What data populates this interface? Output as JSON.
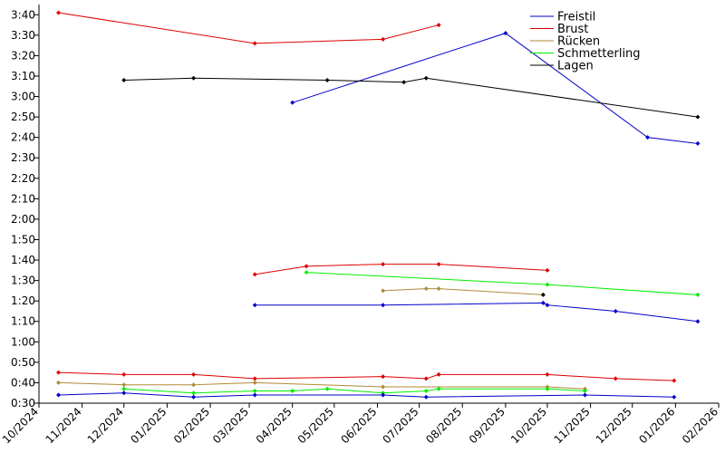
{
  "chart_data": {
    "type": "line",
    "title": "",
    "xlabel": "",
    "ylabel": "",
    "xlim": [
      "2024-10-01",
      "2026-02-01"
    ],
    "ylim": [
      "0:30",
      "3:45"
    ],
    "x_ticks": [
      "10/2024",
      "11/2024",
      "12/2024",
      "01/2025",
      "02/2025",
      "03/2025",
      "04/2025",
      "05/2025",
      "06/2025",
      "07/2025",
      "08/2025",
      "09/2025",
      "10/2025",
      "11/2025",
      "12/2025",
      "01/2026",
      "02/2026"
    ],
    "y_ticks": [
      "0:30",
      "0:40",
      "0:50",
      "1:00",
      "1:10",
      "1:20",
      "1:30",
      "1:40",
      "1:50",
      "2:00",
      "2:10",
      "2:20",
      "2:30",
      "2:40",
      "2:50",
      "3:00",
      "3:10",
      "3:20",
      "3:30",
      "3:40"
    ],
    "grid": false,
    "legend_position": "top-right",
    "colors": {
      "Freistil": "#0000cc",
      "Brust": "#dd0000",
      "Rücken": "#b08a3a",
      "Schmetterling": "#00ee00",
      "Lagen": "#000000"
    },
    "legend": [
      "Freistil",
      "Brust",
      "Rücken",
      "Schmetterling",
      "Lagen"
    ],
    "series": [
      {
        "name": "Freistil",
        "points": [
          [
            "2025-04-01",
            "2:57"
          ],
          [
            "2025-09-01",
            "3:31"
          ],
          [
            "2025-12-12",
            "2:40"
          ],
          [
            "2026-01-17",
            "2:37"
          ]
        ]
      },
      {
        "name": "Brust",
        "points": [
          [
            "2024-10-15",
            "3:41"
          ],
          [
            "2025-03-05",
            "3:26"
          ],
          [
            "2025-06-05",
            "3:28"
          ],
          [
            "2025-07-15",
            "3:35"
          ]
        ]
      },
      {
        "name": "Lagen",
        "points": [
          [
            "2024-12-01",
            "3:08"
          ],
          [
            "2025-01-20",
            "3:09"
          ],
          [
            "2025-04-26",
            "3:08"
          ],
          [
            "2025-06-20",
            "3:07"
          ],
          [
            "2025-07-06",
            "3:09"
          ],
          [
            "2026-01-17",
            "2:50"
          ]
        ]
      },
      {
        "name": "Brust",
        "points": [
          [
            "2025-03-05",
            "1:33"
          ],
          [
            "2025-04-11",
            "1:37"
          ],
          [
            "2025-06-05",
            "1:38"
          ],
          [
            "2025-07-15",
            "1:38"
          ],
          [
            "2025-10-01",
            "1:35"
          ]
        ]
      },
      {
        "name": "Schmetterling",
        "points": [
          [
            "2025-04-11",
            "1:34"
          ],
          [
            "2025-10-01",
            "1:28"
          ],
          [
            "2026-01-17",
            "1:23"
          ]
        ]
      },
      {
        "name": "Rücken",
        "points": [
          [
            "2025-06-05",
            "1:25"
          ],
          [
            "2025-07-06",
            "1:26"
          ],
          [
            "2025-07-15",
            "1:26"
          ],
          [
            "2025-09-28",
            "1:23"
          ]
        ]
      },
      {
        "name": "Lagen",
        "points": [
          [
            "2025-09-28",
            "1:23"
          ]
        ]
      },
      {
        "name": "Freistil",
        "points": [
          [
            "2025-03-05",
            "1:18"
          ],
          [
            "2025-06-05",
            "1:18"
          ],
          [
            "2025-09-28",
            "1:19"
          ],
          [
            "2025-10-01",
            "1:18"
          ],
          [
            "2025-11-19",
            "1:15"
          ],
          [
            "2026-01-17",
            "1:10"
          ]
        ]
      },
      {
        "name": "Brust",
        "points": [
          [
            "2024-10-15",
            "0:45"
          ],
          [
            "2024-12-01",
            "0:44"
          ],
          [
            "2025-01-20",
            "0:44"
          ],
          [
            "2025-03-05",
            "0:42"
          ],
          [
            "2025-06-05",
            "0:43"
          ],
          [
            "2025-07-06",
            "0:42"
          ],
          [
            "2025-07-15",
            "0:44"
          ],
          [
            "2025-10-01",
            "0:44"
          ],
          [
            "2025-11-19",
            "0:42"
          ],
          [
            "2025-12-31",
            "0:41"
          ]
        ]
      },
      {
        "name": "Rücken",
        "points": [
          [
            "2024-10-15",
            "0:40"
          ],
          [
            "2024-12-01",
            "0:39"
          ],
          [
            "2025-01-20",
            "0:39"
          ],
          [
            "2025-03-05",
            "0:40"
          ],
          [
            "2025-06-05",
            "0:38"
          ],
          [
            "2025-10-01",
            "0:38"
          ],
          [
            "2025-10-28",
            "0:37"
          ]
        ]
      },
      {
        "name": "Schmetterling",
        "points": [
          [
            "2024-12-01",
            "0:37"
          ],
          [
            "2025-01-20",
            "0:35"
          ],
          [
            "2025-03-05",
            "0:36"
          ],
          [
            "2025-04-01",
            "0:36"
          ],
          [
            "2025-04-26",
            "0:37"
          ],
          [
            "2025-06-05",
            "0:35"
          ],
          [
            "2025-07-06",
            "0:36"
          ],
          [
            "2025-07-15",
            "0:37"
          ],
          [
            "2025-10-01",
            "0:37"
          ],
          [
            "2025-10-28",
            "0:36"
          ]
        ]
      },
      {
        "name": "Freistil",
        "points": [
          [
            "2024-10-15",
            "0:34"
          ],
          [
            "2024-12-01",
            "0:35"
          ],
          [
            "2025-01-20",
            "0:33"
          ],
          [
            "2025-03-05",
            "0:34"
          ],
          [
            "2025-06-05",
            "0:34"
          ],
          [
            "2025-07-06",
            "0:33"
          ],
          [
            "2025-10-28",
            "0:34"
          ],
          [
            "2025-12-31",
            "0:33"
          ]
        ]
      }
    ]
  }
}
